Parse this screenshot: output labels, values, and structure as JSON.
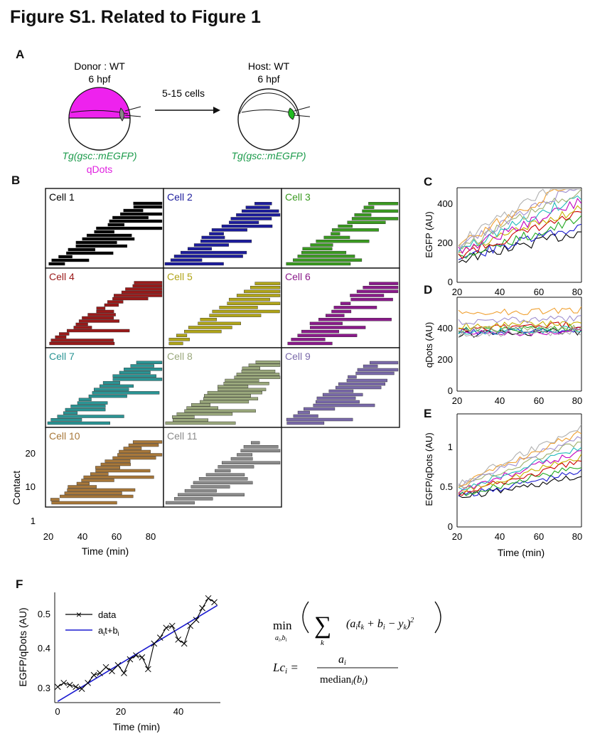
{
  "figure_title": "Figure S1. Related to Figure 1",
  "panel_labels": {
    "a": "A",
    "b": "B",
    "c": "C",
    "d": "D",
    "e": "E",
    "f": "F"
  },
  "panel_a": {
    "donor_label": "Donor : WT",
    "donor_hpf": "6 hpf",
    "arrow_label": "5-15 cells",
    "host_label": "Host: WT",
    "host_hpf": "6 hpf",
    "donor_transgene": "Tg(gsc::mEGFP)",
    "donor_dye": "qDots",
    "host_transgene": "Tg(gsc::mEGFP)",
    "colors": {
      "donor_fill": "#ee22ee",
      "transgene_text": "#1a9a4a",
      "dye_text": "#e020e0",
      "host_cells": "#22bb22"
    }
  },
  "panel_b": {
    "ylabel": "Contact",
    "xlabel": "Time (min)",
    "x_ticks": [
      "20",
      "40",
      "60",
      "80"
    ],
    "y_ticks": [
      "20",
      "10",
      "1"
    ],
    "cells": [
      {
        "label": "Cell 1",
        "color": "#000000"
      },
      {
        "label": "Cell 2",
        "color": "#1c1c9c"
      },
      {
        "label": "Cell 3",
        "color": "#3a9a20"
      },
      {
        "label": "Cell 4",
        "color": "#9a1a1a"
      },
      {
        "label": "Cell 5",
        "color": "#b0a418"
      },
      {
        "label": "Cell 6",
        "color": "#8a1a8a"
      },
      {
        "label": "Cell 7",
        "color": "#2a9494"
      },
      {
        "label": "Cell 8",
        "color": "#9aa87c"
      },
      {
        "label": "Cell 9",
        "color": "#7a6aaa"
      },
      {
        "label": "Cell 10",
        "color": "#a8783a"
      },
      {
        "label": "Cell 11",
        "color": "#8a8a8a"
      }
    ]
  },
  "panel_cde": {
    "xlabel": "Time (min)",
    "x_ticks": [
      "20",
      "40",
      "60",
      "80"
    ],
    "c_ylabel": "EGFP (AU)",
    "c_yticks": [
      "0",
      "200",
      "400"
    ],
    "d_ylabel": "qDots (AU)",
    "d_yticks": [
      "0",
      "200",
      "400"
    ],
    "e_ylabel": "EGFP/qDots (AU)",
    "e_yticks": [
      "0",
      "0.5",
      "1"
    ],
    "series_colors": [
      "#000000",
      "#1a1ad0",
      "#22aa22",
      "#cc0000",
      "#c8b000",
      "#c000c0",
      "#22bbbb",
      "#a0b070",
      "#a090d0",
      "#f0a030",
      "#b0b0b0"
    ]
  },
  "chart_data": [
    {
      "type": "line",
      "panel": "F",
      "xlabel": "Time (min)",
      "ylabel": "EGFP/qDots (AU)",
      "x_ticks": [
        "0",
        "20",
        "40"
      ],
      "y_ticks": [
        "0.3",
        "0.4",
        "0.5"
      ],
      "xlim": [
        -1,
        54
      ],
      "ylim": [
        0.28,
        0.56
      ],
      "series": [
        {
          "name": "data",
          "color": "#000000",
          "marker": "x",
          "x": [
            0,
            2,
            4,
            6,
            8,
            10,
            12,
            14,
            16,
            18,
            20,
            22,
            24,
            26,
            28,
            30,
            32,
            34,
            36,
            38,
            40,
            42,
            44,
            46,
            48,
            50,
            52
          ],
          "y": [
            0.32,
            0.33,
            0.325,
            0.32,
            0.315,
            0.33,
            0.35,
            0.355,
            0.37,
            0.36,
            0.375,
            0.355,
            0.39,
            0.4,
            0.395,
            0.365,
            0.43,
            0.445,
            0.47,
            0.475,
            0.44,
            0.43,
            0.475,
            0.49,
            0.52,
            0.545,
            0.535
          ]
        },
        {
          "name": "a_i t+b_i",
          "color": "#1a1ad0",
          "x": [
            0,
            53
          ],
          "y": [
            0.283,
            0.527
          ]
        }
      ],
      "legend": {
        "position": "top-left",
        "entries": [
          "data",
          "a",
          "t+b"
        ],
        "subscripts": [
          "i",
          "i"
        ]
      }
    }
  ],
  "equations": {
    "min_word": "min",
    "min_sub": "a",
    "min_sub_i": "i",
    "min_sub_b": ",b",
    "sum": "∑",
    "sum_sub": "k",
    "terms": "(a",
    "eq2_lhs": "Lc",
    "eq2_num": "a",
    "eq2_den": "median",
    "eq2_den_rest": "(b"
  }
}
